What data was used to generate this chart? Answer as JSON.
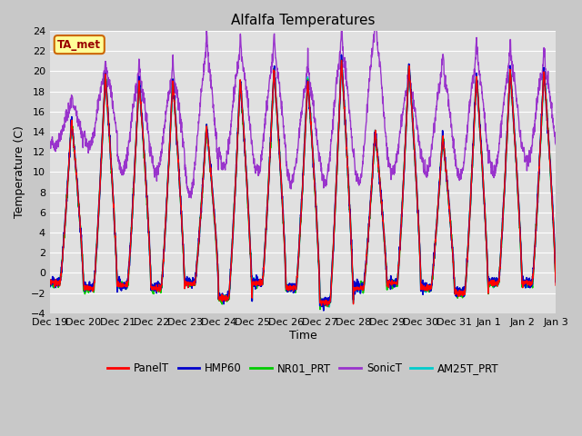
{
  "title": "Alfalfa Temperatures",
  "ylabel": "Temperature (C)",
  "xlabel": "Time",
  "ylim": [
    -4,
    24
  ],
  "annotation_text": "TA_met",
  "annotation_bg": "#FFFF99",
  "annotation_border": "#CC6600",
  "annotation_text_color": "#990000",
  "fig_bg": "#C8C8C8",
  "plot_bg": "#E0E0E0",
  "series_colors": {
    "PanelT": "#FF0000",
    "HMP60": "#0000CC",
    "NR01_PRT": "#00CC00",
    "SonicT": "#9933CC",
    "AM25T_PRT": "#00CCCC"
  },
  "n_days": 15,
  "points_per_day": 144,
  "day_peaks": [
    15.0,
    19.5,
    19.0,
    19.0,
    14.5,
    19.0,
    20.0,
    19.0,
    21.0,
    14.0,
    20.5,
    13.5,
    19.5,
    20.0,
    20.0
  ],
  "day_mins": [
    -1.0,
    -1.5,
    -1.2,
    -1.5,
    -1.0,
    -2.5,
    -1.0,
    -1.5,
    -3.0,
    -1.5,
    -1.0,
    -1.5,
    -2.0,
    -1.0,
    -1.0
  ],
  "sonic_peaks": [
    16.5,
    19.5,
    19.0,
    19.0,
    21.0,
    21.0,
    21.0,
    19.0,
    21.5,
    23.0,
    18.5,
    19.5,
    20.5,
    20.5,
    20.0
  ],
  "sonic_mins": [
    12.5,
    12.5,
    10.0,
    10.0,
    8.0,
    10.5,
    10.0,
    9.0,
    9.0,
    9.0,
    10.0,
    10.0,
    9.5,
    10.0,
    11.0
  ],
  "tick_labels": [
    "Dec 19",
    "Dec 20",
    "Dec 21",
    "Dec 22",
    "Dec 23",
    "Dec 24",
    "Dec 25",
    "Dec 26",
    "Dec 27",
    "Dec 28",
    "Dec 29",
    "Dec 30",
    "Dec 31",
    "Jan 1",
    "Jan 2",
    "Jan 3"
  ]
}
